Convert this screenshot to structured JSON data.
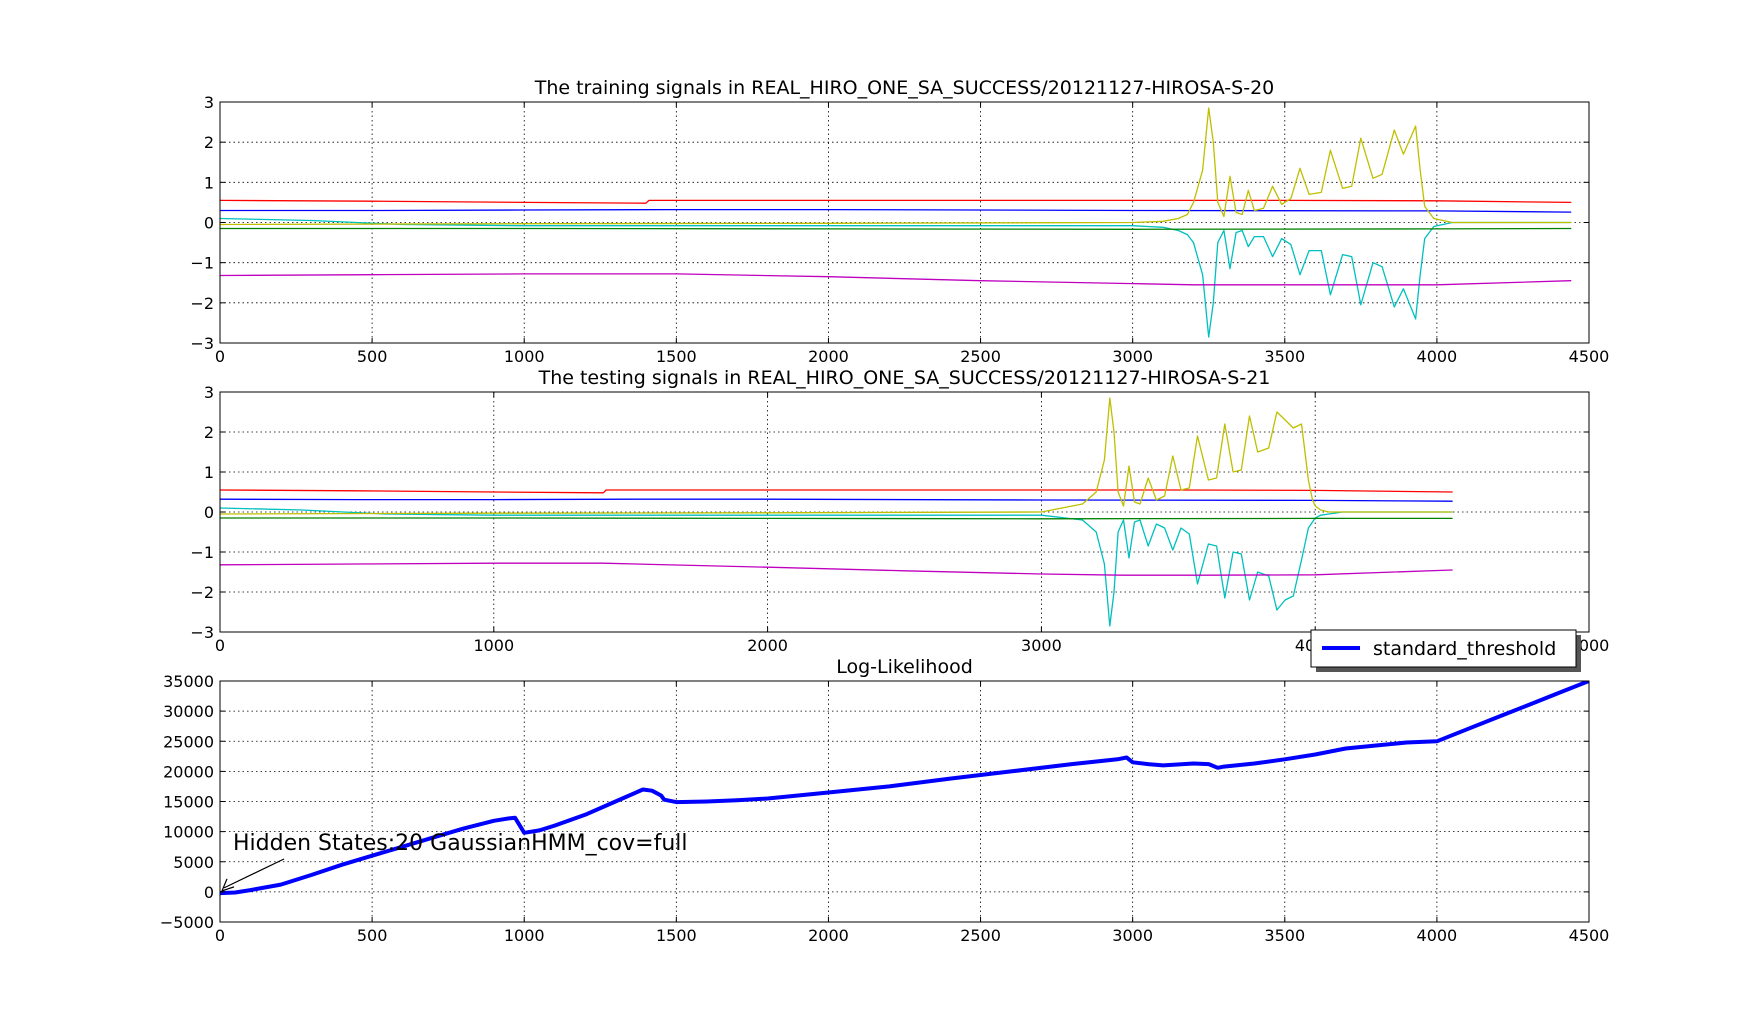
{
  "chart_data": [
    {
      "type": "line",
      "title": "The training signals in REAL_HIRO_ONE_SA_SUCCESS/20121127-HIROSA-S-20",
      "xlim": [
        0,
        4500
      ],
      "ylim": [
        -3,
        3
      ],
      "xticks": [
        0,
        500,
        1000,
        1500,
        2000,
        2500,
        3000,
        3500,
        4000,
        4500
      ],
      "yticks": [
        -3,
        -2,
        -1,
        0,
        1,
        2,
        3
      ],
      "grid": true,
      "series": [
        {
          "color": "#ff0000",
          "x": [
            0,
            500,
            1000,
            1400,
            1410,
            2000,
            3000,
            3500,
            4000,
            4440
          ],
          "y": [
            0.55,
            0.53,
            0.5,
            0.48,
            0.55,
            0.55,
            0.55,
            0.55,
            0.54,
            0.5
          ]
        },
        {
          "color": "#0000ff",
          "x": [
            0,
            500,
            1000,
            1500,
            2000,
            3000,
            4000,
            4440
          ],
          "y": [
            0.3,
            0.3,
            0.31,
            0.32,
            0.32,
            0.3,
            0.29,
            0.26
          ]
        },
        {
          "color": "#00bfbf",
          "x": [
            0,
            300,
            600,
            1000,
            2000,
            3000,
            3100,
            3150,
            3180,
            3200,
            3230,
            3250,
            3265,
            3280,
            3300,
            3320,
            3340,
            3360,
            3380,
            3400,
            3430,
            3460,
            3490,
            3520,
            3550,
            3580,
            3620,
            3650,
            3690,
            3720,
            3750,
            3790,
            3820,
            3860,
            3890,
            3930,
            3945,
            3960,
            3990,
            4050,
            4440
          ],
          "y": [
            0.1,
            0.05,
            -0.05,
            -0.08,
            -0.08,
            -0.08,
            -0.12,
            -0.2,
            -0.3,
            -0.5,
            -1.3,
            -2.85,
            -2.0,
            -0.5,
            -0.2,
            -1.15,
            -0.25,
            -0.2,
            -0.6,
            -0.35,
            -0.35,
            -0.85,
            -0.4,
            -0.55,
            -1.3,
            -0.7,
            -0.7,
            -1.8,
            -0.8,
            -0.85,
            -2.05,
            -1.0,
            -1.1,
            -2.1,
            -1.65,
            -2.4,
            -1.3,
            -0.4,
            -0.1,
            0.0,
            0.0
          ]
        },
        {
          "color": "#008000",
          "x": [
            0,
            1000,
            2000,
            3000,
            4000,
            4440
          ],
          "y": [
            -0.15,
            -0.15,
            -0.16,
            -0.17,
            -0.16,
            -0.15
          ]
        },
        {
          "color": "#bfbf00",
          "x": [
            0,
            1000,
            2000,
            3000,
            3100,
            3150,
            3180,
            3200,
            3230,
            3250,
            3265,
            3280,
            3300,
            3320,
            3340,
            3360,
            3380,
            3400,
            3430,
            3460,
            3490,
            3520,
            3550,
            3580,
            3620,
            3650,
            3690,
            3720,
            3750,
            3790,
            3820,
            3860,
            3890,
            3930,
            3945,
            3960,
            3990,
            4050,
            4440
          ],
          "y": [
            -0.05,
            -0.03,
            -0.02,
            0.0,
            0.03,
            0.1,
            0.2,
            0.5,
            1.3,
            2.85,
            2.0,
            0.5,
            0.15,
            1.15,
            0.25,
            0.2,
            0.8,
            0.3,
            0.35,
            0.9,
            0.45,
            0.6,
            1.35,
            0.7,
            0.75,
            1.8,
            0.85,
            0.9,
            2.1,
            1.1,
            1.2,
            2.3,
            1.7,
            2.4,
            1.3,
            0.4,
            0.1,
            0.0,
            0.0
          ]
        },
        {
          "color": "#bf00bf",
          "x": [
            0,
            500,
            1000,
            1500,
            2000,
            2500,
            3000,
            3200,
            3500,
            4000,
            4440
          ],
          "y": [
            -1.32,
            -1.3,
            -1.28,
            -1.28,
            -1.35,
            -1.45,
            -1.52,
            -1.55,
            -1.55,
            -1.55,
            -1.45
          ]
        }
      ]
    },
    {
      "type": "line",
      "title": "The testing  signals in REAL_HIRO_ONE_SA_SUCCESS/20121127-HIROSA-S-21",
      "xlim": [
        0,
        5000
      ],
      "ylim": [
        -3,
        3
      ],
      "xticks": [
        0,
        1000,
        2000,
        3000,
        4000,
        5000
      ],
      "yticks": [
        -3,
        -2,
        -1,
        0,
        1,
        2,
        3
      ],
      "grid": true,
      "series": [
        {
          "color": "#ff0000",
          "x": [
            0,
            500,
            1000,
            1400,
            1410,
            2000,
            3000,
            3500,
            4000,
            4500
          ],
          "y": [
            0.55,
            0.53,
            0.5,
            0.48,
            0.55,
            0.55,
            0.55,
            0.55,
            0.54,
            0.5
          ]
        },
        {
          "color": "#0000ff",
          "x": [
            0,
            500,
            1000,
            1500,
            2000,
            3000,
            4000,
            4500
          ],
          "y": [
            0.32,
            0.31,
            0.31,
            0.32,
            0.32,
            0.3,
            0.29,
            0.27
          ]
        },
        {
          "color": "#00bfbf",
          "x": [
            0,
            300,
            600,
            1000,
            2000,
            3000,
            3150,
            3200,
            3230,
            3250,
            3265,
            3280,
            3300,
            3320,
            3340,
            3360,
            3390,
            3420,
            3450,
            3480,
            3510,
            3540,
            3570,
            3610,
            3640,
            3670,
            3700,
            3730,
            3760,
            3790,
            3830,
            3860,
            3890,
            3920,
            3950,
            3975,
            3990,
            4000,
            4020,
            4050,
            4100,
            4500
          ],
          "y": [
            0.1,
            0.05,
            -0.05,
            -0.08,
            -0.08,
            -0.08,
            -0.2,
            -0.5,
            -1.3,
            -2.85,
            -2.0,
            -0.5,
            -0.2,
            -1.15,
            -0.25,
            -0.2,
            -0.85,
            -0.3,
            -0.4,
            -0.95,
            -0.4,
            -0.55,
            -1.8,
            -0.8,
            -0.85,
            -2.15,
            -1.0,
            -1.05,
            -2.2,
            -1.5,
            -1.6,
            -2.45,
            -2.2,
            -2.1,
            -1.2,
            -0.4,
            -0.25,
            -0.15,
            -0.08,
            -0.05,
            0.0,
            0.0
          ]
        },
        {
          "color": "#008000",
          "x": [
            0,
            1000,
            2000,
            3000,
            4000,
            4500
          ],
          "y": [
            -0.15,
            -0.15,
            -0.16,
            -0.17,
            -0.16,
            -0.16
          ]
        },
        {
          "color": "#bfbf00",
          "x": [
            0,
            1000,
            2000,
            3000,
            3150,
            3200,
            3230,
            3250,
            3265,
            3280,
            3300,
            3320,
            3340,
            3360,
            3390,
            3420,
            3450,
            3480,
            3510,
            3540,
            3570,
            3610,
            3640,
            3670,
            3700,
            3730,
            3760,
            3790,
            3830,
            3860,
            3890,
            3920,
            3950,
            3975,
            3990,
            4000,
            4020,
            4050,
            4100,
            4500
          ],
          "y": [
            -0.05,
            -0.03,
            -0.02,
            0.0,
            0.2,
            0.5,
            1.3,
            2.85,
            2.0,
            0.5,
            0.15,
            1.15,
            0.25,
            0.2,
            0.85,
            0.3,
            0.4,
            1.4,
            0.55,
            0.6,
            1.9,
            0.8,
            0.85,
            2.2,
            1.0,
            1.05,
            2.4,
            1.5,
            1.6,
            2.5,
            2.3,
            2.1,
            2.2,
            0.8,
            0.3,
            0.15,
            0.05,
            0.0,
            0.0,
            0.0
          ]
        },
        {
          "color": "#bf00bf",
          "x": [
            0,
            500,
            1000,
            1400,
            2000,
            2500,
            3000,
            3300,
            3600,
            4000,
            4500
          ],
          "y": [
            -1.32,
            -1.3,
            -1.28,
            -1.28,
            -1.38,
            -1.47,
            -1.55,
            -1.58,
            -1.58,
            -1.57,
            -1.45
          ]
        }
      ]
    },
    {
      "type": "line",
      "title": "Log-Likelihood",
      "xlim": [
        0,
        4500
      ],
      "ylim": [
        -5000,
        35000
      ],
      "xticks": [
        0,
        500,
        1000,
        1500,
        2000,
        2500,
        3000,
        3500,
        4000,
        4500
      ],
      "yticks": [
        -5000,
        0,
        5000,
        10000,
        15000,
        20000,
        25000,
        30000,
        35000
      ],
      "grid": true,
      "legend": {
        "position": "upper-right",
        "entries": [
          {
            "label": "standard_threshold",
            "color": "#0000ff"
          }
        ]
      },
      "annotation": {
        "text": "Hidden States:20 GaussianHMM_cov=full",
        "x": 0,
        "y": 0
      },
      "series": [
        {
          "name": "standard_threshold",
          "color": "#0000ff",
          "x": [
            0,
            50,
            100,
            200,
            300,
            400,
            500,
            600,
            700,
            800,
            900,
            950,
            970,
            1000,
            1050,
            1100,
            1200,
            1300,
            1390,
            1420,
            1450,
            1460,
            1500,
            1600,
            1700,
            1800,
            1900,
            2000,
            2200,
            2400,
            2600,
            2800,
            2950,
            2980,
            3000,
            3050,
            3100,
            3200,
            3250,
            3280,
            3300,
            3400,
            3500,
            3600,
            3700,
            3800,
            3900,
            3950,
            4000,
            4100,
            4200,
            4300,
            4400,
            4500
          ],
          "y": [
            -200,
            -100,
            300,
            1200,
            2800,
            4500,
            6000,
            7500,
            9000,
            10500,
            11800,
            12200,
            12300,
            9800,
            10200,
            11000,
            12800,
            15000,
            17000,
            16800,
            16000,
            15300,
            14900,
            15000,
            15200,
            15500,
            16000,
            16500,
            17500,
            18800,
            20000,
            21200,
            22000,
            22300,
            21500,
            21200,
            21000,
            21300,
            21200,
            20600,
            20800,
            21300,
            22000,
            22800,
            23800,
            24300,
            24800,
            24900,
            25000,
            27000,
            29000,
            31000,
            33000,
            35000
          ]
        }
      ]
    }
  ]
}
